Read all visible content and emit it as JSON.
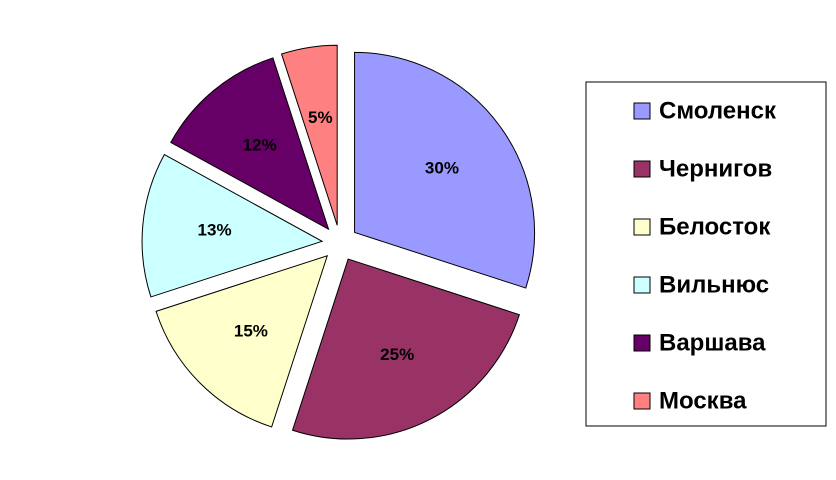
{
  "chart_data": {
    "type": "pie",
    "categories": [
      "Смоленск",
      "Чернигов",
      "Белосток",
      "Вильнюс",
      "Варшава",
      "Москва"
    ],
    "values": [
      30,
      25,
      15,
      13,
      12,
      5
    ],
    "value_labels": [
      "30%",
      "25%",
      "15%",
      "13%",
      "12%",
      "5%"
    ],
    "colors": [
      "#9999ff",
      "#993366",
      "#ffffcc",
      "#ccffff",
      "#660066",
      "#ff8080"
    ],
    "exploded": true,
    "legend": "right"
  }
}
